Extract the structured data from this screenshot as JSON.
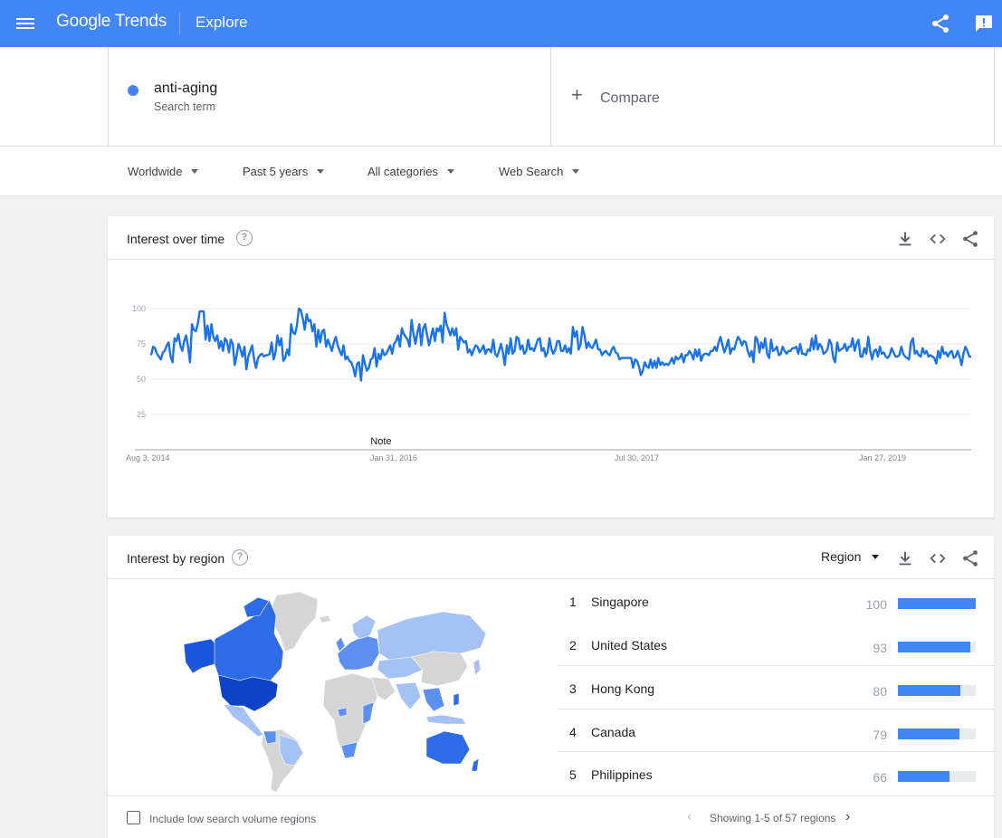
{
  "header": {
    "logo_google": "Google",
    "logo_trends": "Trends",
    "page_title": "Explore",
    "icons": [
      "menu-icon",
      "share-icon",
      "feedback-icon"
    ]
  },
  "search_term": {
    "name": "anti-aging",
    "subtitle": "Search term",
    "color": "#4285f4"
  },
  "compare": {
    "label": "Compare"
  },
  "filters": {
    "location": "Worldwide",
    "time": "Past 5 years",
    "category": "All categories",
    "property": "Web Search"
  },
  "interest_over_time": {
    "title": "Interest over time",
    "note": "Note",
    "chart_data": {
      "type": "line",
      "x_tick_labels": [
        "Aug 3, 2014",
        "Jan 31, 2016",
        "Jul 30, 2017",
        "Jan 27, 2019"
      ],
      "y_ticks": [
        100,
        75,
        50,
        25
      ],
      "ylim": [
        0,
        100
      ],
      "grid": true,
      "series": [
        {
          "color": "#1a73e8",
          "values": [
            67,
            73,
            72,
            68,
            66,
            64,
            69,
            70,
            74,
            76,
            66,
            62,
            79,
            77,
            82,
            74,
            70,
            77,
            81,
            73,
            62,
            89,
            85,
            84,
            89,
            98,
            98,
            98,
            78,
            88,
            77,
            89,
            80,
            77,
            81,
            72,
            77,
            70,
            79,
            77,
            69,
            78,
            75,
            60,
            67,
            75,
            71,
            66,
            73,
            57,
            66,
            70,
            74,
            64,
            58,
            65,
            67,
            68,
            66,
            67,
            67,
            68,
            76,
            64,
            69,
            81,
            74,
            79,
            63,
            65,
            71,
            67,
            89,
            83,
            82,
            88,
            100,
            99,
            93,
            85,
            96,
            91,
            92,
            84,
            89,
            73,
            85,
            76,
            84,
            85,
            73,
            78,
            74,
            70,
            76,
            80,
            74,
            70,
            67,
            74,
            64,
            66,
            63,
            62,
            58,
            52,
            61,
            62,
            49,
            67,
            61,
            56,
            58,
            64,
            65,
            72,
            59,
            68,
            64,
            71,
            67,
            68,
            71,
            74,
            68,
            75,
            77,
            81,
            73,
            86,
            82,
            80,
            78,
            73,
            92,
            82,
            75,
            83,
            89,
            74,
            86,
            89,
            81,
            74,
            80,
            86,
            77,
            86,
            84,
            88,
            76,
            97,
            89,
            85,
            81,
            86,
            81,
            86,
            71,
            80,
            78,
            76,
            77,
            69,
            71,
            67,
            71,
            74,
            73,
            69,
            71,
            74,
            68,
            71,
            71,
            69,
            78,
            68,
            66,
            70,
            75,
            69,
            60,
            74,
            68,
            79,
            68,
            70,
            80,
            79,
            71,
            74,
            68,
            70,
            78,
            71,
            72,
            70,
            74,
            78,
            79,
            70,
            72,
            66,
            69,
            79,
            71,
            68,
            71,
            77,
            77,
            70,
            70,
            74,
            69,
            72,
            68,
            87,
            80,
            84,
            71,
            75,
            87,
            81,
            72,
            76,
            73,
            72,
            75,
            78,
            71,
            71,
            67,
            69,
            70,
            68,
            67,
            71,
            73,
            69,
            68,
            64,
            65,
            65,
            65,
            65,
            65,
            65,
            58,
            64,
            63,
            59,
            53,
            56,
            62,
            59,
            58,
            64,
            58,
            63,
            58,
            65,
            60,
            62,
            60,
            61,
            60,
            62,
            65,
            61,
            66,
            64,
            65,
            68,
            62,
            67,
            67,
            70,
            68,
            64,
            71,
            66,
            71,
            63,
            67,
            68,
            68,
            67,
            70,
            70,
            73,
            70,
            76,
            80,
            74,
            69,
            73,
            78,
            68,
            72,
            71,
            76,
            80,
            78,
            74,
            77,
            76,
            70,
            66,
            70,
            62,
            80,
            78,
            69,
            76,
            72,
            79,
            68,
            65,
            78,
            70,
            71,
            73,
            67,
            68,
            73,
            70,
            68,
            70,
            70,
            72,
            72,
            73,
            68,
            75,
            68,
            68,
            67,
            71,
            70,
            79,
            71,
            81,
            71,
            75,
            73,
            68,
            69,
            71,
            78,
            75,
            65,
            62,
            76,
            70,
            71,
            72,
            75,
            70,
            73,
            73,
            79,
            70,
            75,
            78,
            66,
            66,
            72,
            68,
            80,
            70,
            64,
            70,
            71,
            66,
            73,
            68,
            69,
            66,
            65,
            67,
            72,
            69,
            66,
            66,
            67,
            73,
            68,
            66,
            65,
            64,
            76,
            79,
            68,
            70,
            67,
            66,
            72,
            68,
            70,
            66,
            67,
            66,
            65,
            61,
            70,
            65,
            73,
            68,
            69,
            66,
            69,
            70,
            65,
            66,
            70,
            66,
            60,
            68,
            73,
            70,
            66,
            66
          ]
        }
      ]
    }
  },
  "interest_by_region": {
    "title": "Interest by region",
    "resolution_label": "Region",
    "regions": [
      {
        "rank": "1",
        "name": "Singapore",
        "value": 100
      },
      {
        "rank": "2",
        "name": "United States",
        "value": 93
      },
      {
        "rank": "3",
        "name": "Hong Kong",
        "value": 80
      },
      {
        "rank": "4",
        "name": "Canada",
        "value": 79
      },
      {
        "rank": "5",
        "name": "Philippines",
        "value": 66
      }
    ],
    "checkbox_label": "Include low search volume regions",
    "pager_text": "Showing 1-5 of 57 regions",
    "map_colors": {
      "high": "#1a56db",
      "mid": "#5c8ff0",
      "low": "#a4c2f4",
      "none": "#d5d5d5"
    }
  }
}
